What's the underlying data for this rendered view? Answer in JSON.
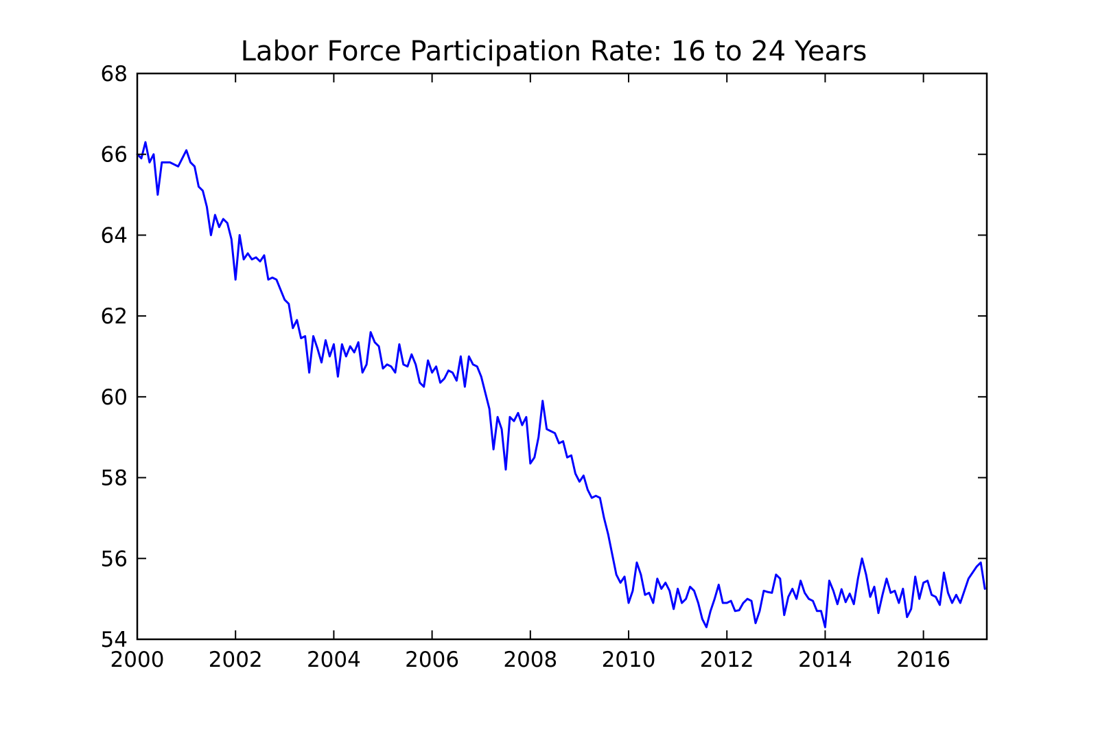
{
  "chart_data": {
    "type": "line",
    "title": "Labor Force Participation Rate: 16 to 24 Years",
    "xlabel": "",
    "ylabel": "",
    "x_ticks": [
      2000,
      2002,
      2004,
      2006,
      2008,
      2010,
      2012,
      2014,
      2016
    ],
    "y_ticks": [
      54,
      56,
      58,
      60,
      62,
      64,
      66,
      68
    ],
    "xlim": [
      2000,
      2017.29
    ],
    "ylim": [
      54,
      68
    ],
    "grid": false,
    "legend": "none",
    "line_color": "#0000ff",
    "line_width": 3,
    "axis_color": "#000000",
    "frequency": "monthly",
    "start_year": 2000,
    "start_month": 1,
    "end_year": 2017,
    "end_month": 4,
    "values": [
      66.0,
      65.9,
      66.3,
      65.8,
      66.0,
      65.0,
      65.8,
      65.8,
      65.8,
      65.75,
      65.7,
      65.9,
      66.1,
      65.8,
      65.7,
      65.2,
      65.1,
      64.7,
      64.0,
      64.5,
      64.2,
      64.4,
      64.3,
      63.9,
      62.9,
      64.0,
      63.4,
      63.55,
      63.4,
      63.45,
      63.35,
      63.5,
      62.9,
      62.95,
      62.9,
      62.65,
      62.4,
      62.3,
      61.7,
      61.9,
      61.45,
      61.5,
      60.6,
      61.5,
      61.2,
      60.85,
      61.4,
      61.0,
      61.3,
      60.5,
      61.3,
      61.0,
      61.25,
      61.1,
      61.35,
      60.6,
      60.8,
      61.6,
      61.35,
      61.25,
      60.7,
      60.8,
      60.75,
      60.6,
      61.3,
      60.8,
      60.75,
      61.05,
      60.8,
      60.35,
      60.25,
      60.9,
      60.6,
      60.75,
      60.35,
      60.45,
      60.65,
      60.6,
      60.4,
      61.0,
      60.25,
      61.0,
      60.8,
      60.75,
      60.5,
      60.1,
      59.7,
      58.7,
      59.5,
      59.2,
      58.2,
      59.5,
      59.4,
      59.6,
      59.3,
      59.5,
      58.35,
      58.5,
      59.0,
      59.9,
      59.2,
      59.15,
      59.1,
      58.85,
      58.9,
      58.5,
      58.55,
      58.1,
      57.9,
      58.05,
      57.7,
      57.5,
      57.55,
      57.5,
      57.0,
      56.6,
      56.1,
      55.6,
      55.4,
      55.55,
      54.9,
      55.2,
      55.9,
      55.6,
      55.1,
      55.15,
      54.9,
      55.5,
      55.25,
      55.4,
      55.2,
      54.75,
      55.25,
      54.9,
      55.0,
      55.3,
      55.2,
      54.9,
      54.5,
      54.3,
      54.7,
      55.0,
      55.35,
      54.9,
      54.9,
      54.95,
      54.7,
      54.72,
      54.9,
      55.0,
      54.95,
      54.4,
      54.7,
      55.2,
      55.17,
      55.15,
      55.6,
      55.5,
      54.6,
      55.05,
      55.25,
      55.0,
      55.45,
      55.15,
      55.0,
      54.95,
      54.7,
      54.7,
      54.3,
      55.45,
      55.2,
      54.87,
      55.24,
      54.92,
      55.13,
      54.87,
      55.5,
      56.0,
      55.6,
      55.05,
      55.3,
      54.65,
      55.1,
      55.5,
      55.15,
      55.2,
      54.9,
      55.25,
      54.55,
      54.75,
      55.55,
      55.0,
      55.4,
      55.45,
      55.1,
      55.05,
      54.85,
      55.65,
      55.15,
      54.9,
      55.1,
      54.9,
      55.2,
      55.5,
      55.65,
      55.8,
      55.9,
      55.25
    ]
  }
}
